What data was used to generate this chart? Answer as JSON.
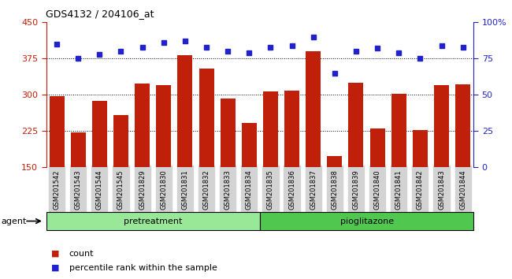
{
  "title": "GDS4132 / 204106_at",
  "samples": [
    "GSM201542",
    "GSM201543",
    "GSM201544",
    "GSM201545",
    "GSM201829",
    "GSM201830",
    "GSM201831",
    "GSM201832",
    "GSM201833",
    "GSM201834",
    "GSM201835",
    "GSM201836",
    "GSM201837",
    "GSM201838",
    "GSM201839",
    "GSM201840",
    "GSM201841",
    "GSM201842",
    "GSM201843",
    "GSM201844"
  ],
  "bar_values": [
    297,
    222,
    288,
    258,
    323,
    320,
    382,
    355,
    292,
    242,
    307,
    308,
    390,
    174,
    325,
    230,
    302,
    228,
    320,
    321
  ],
  "dot_values": [
    85,
    75,
    78,
    80,
    83,
    86,
    87,
    83,
    80,
    79,
    83,
    84,
    90,
    65,
    80,
    82,
    79,
    75,
    84,
    83
  ],
  "bar_color": "#c0200a",
  "dot_color": "#2222cc",
  "ylim_left": [
    150,
    450
  ],
  "ylim_right": [
    0,
    100
  ],
  "yticks_left": [
    150,
    225,
    300,
    375,
    450
  ],
  "yticks_right": [
    0,
    25,
    50,
    75,
    100
  ],
  "grid_lines": [
    225,
    300,
    375
  ],
  "pretreatment_samples": 10,
  "pioglitazone_samples": 10,
  "agent_label": "agent",
  "pretreatment_label": "pretreatment",
  "pioglitazone_label": "pioglitazone",
  "legend_count": "count",
  "legend_percentile": "percentile rank within the sample",
  "bg_xticklabels": "#d3d3d3",
  "bg_pretreatment": "#98e898",
  "bg_pioglitazone": "#50c850",
  "bar_width": 0.7
}
